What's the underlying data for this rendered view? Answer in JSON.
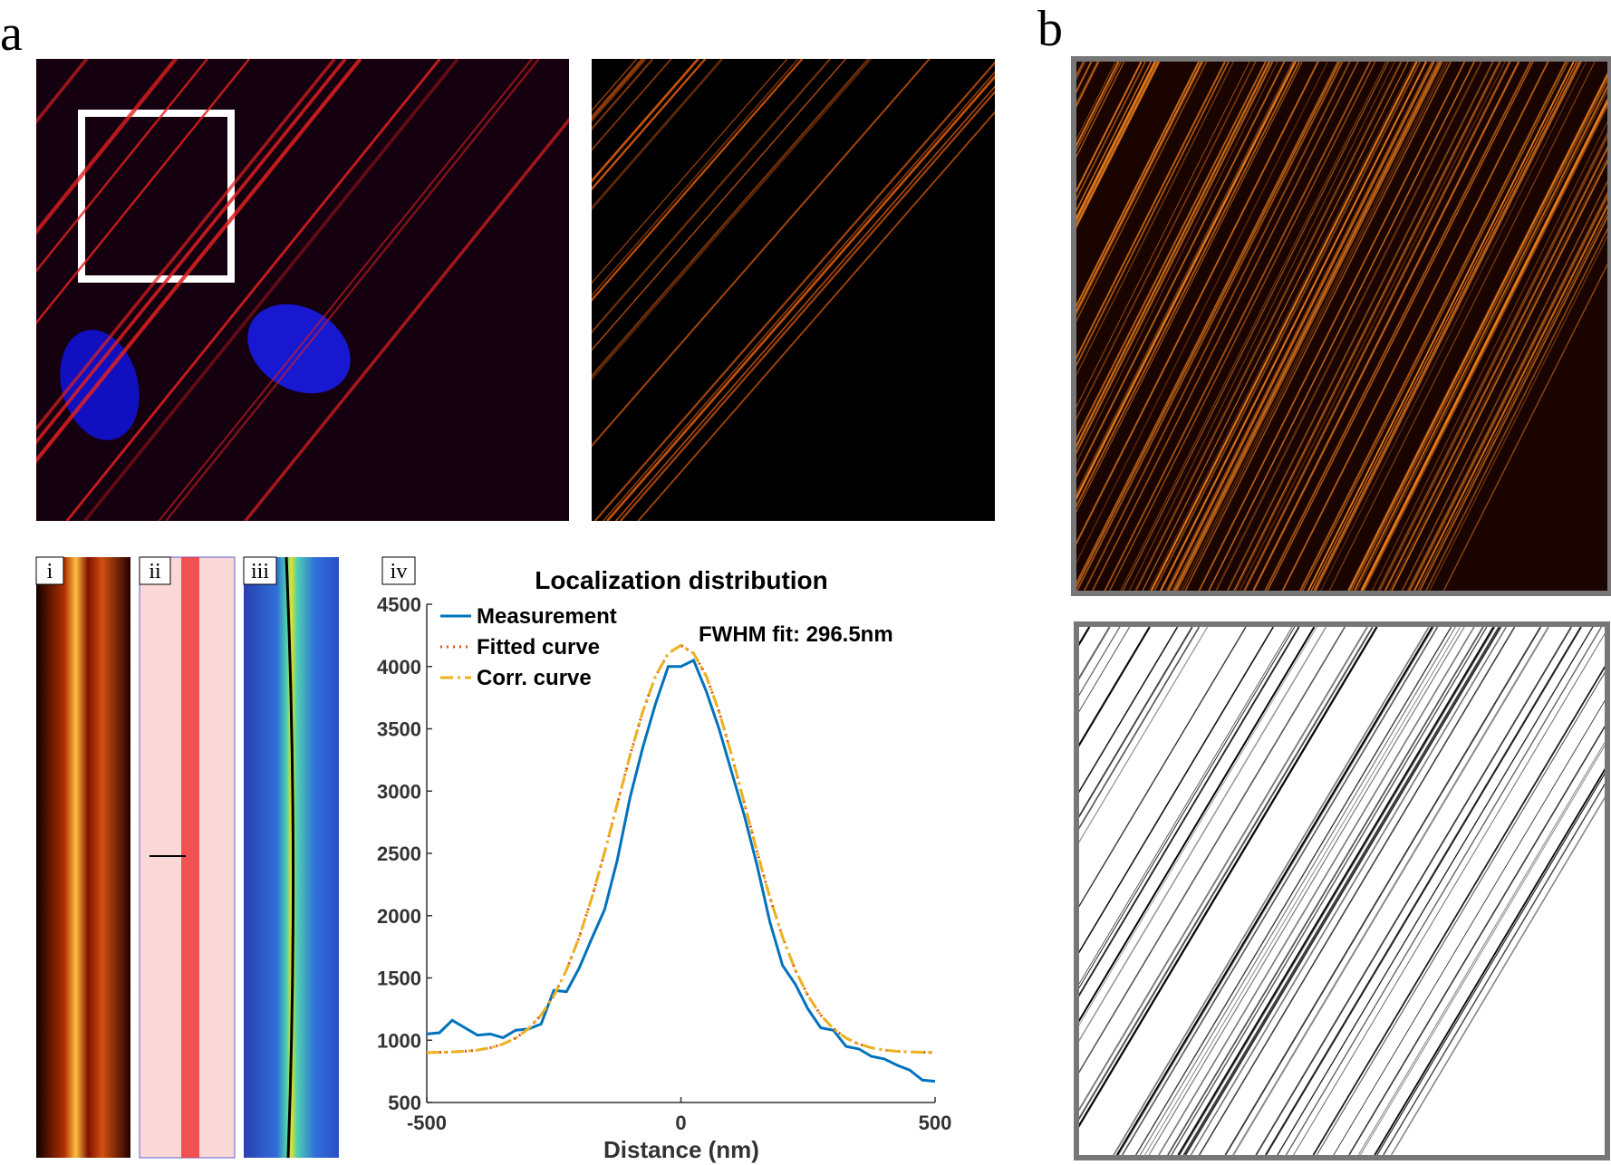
{
  "labels": {
    "a": "a",
    "b": "b",
    "i": "i",
    "ii": "ii",
    "iii": "iii",
    "iv": "iv"
  },
  "chart_data": {
    "type": "line",
    "title": "Localization distribution",
    "xlabel": "Distance (nm)",
    "annotation": "FWHM fit: 296.5nm",
    "legend": "upper left",
    "x": [
      -500,
      -475,
      -450,
      -425,
      -400,
      -375,
      -350,
      -325,
      -300,
      -275,
      -250,
      -225,
      -200,
      -175,
      -150,
      -125,
      -100,
      -75,
      -50,
      -25,
      0,
      25,
      50,
      75,
      100,
      125,
      150,
      175,
      200,
      225,
      250,
      275,
      300,
      325,
      350,
      375,
      400,
      425,
      450,
      475,
      500
    ],
    "series": [
      {
        "name": "Measurement",
        "color": "#0072bd",
        "style": "solid",
        "values": [
          1050,
          1060,
          1160,
          1100,
          1040,
          1050,
          1020,
          1080,
          1090,
          1130,
          1400,
          1390,
          1580,
          1820,
          2050,
          2450,
          2950,
          3350,
          3700,
          4000,
          4000,
          4050,
          3800,
          3500,
          3150,
          2800,
          2400,
          1950,
          1600,
          1450,
          1250,
          1100,
          1080,
          950,
          930,
          870,
          850,
          800,
          760,
          680,
          670
        ]
      },
      {
        "name": "Fitted curve",
        "color": "#d95319",
        "style": "dotted",
        "values": [
          901,
          903,
          906,
          911,
          921,
          939,
          969,
          1017,
          1092,
          1202,
          1357,
          1564,
          1828,
          2147,
          2510,
          2899,
          3287,
          3639,
          3922,
          4106,
          4170,
          4106,
          3922,
          3639,
          3287,
          2899,
          2510,
          2147,
          1828,
          1564,
          1357,
          1202,
          1092,
          1017,
          969,
          939,
          921,
          911,
          906,
          903,
          901
        ]
      },
      {
        "name": "Corr. curve",
        "color": "#edb120",
        "style": "dashdot",
        "values": [
          901,
          903,
          906,
          911,
          921,
          939,
          969,
          1017,
          1092,
          1202,
          1357,
          1564,
          1828,
          2147,
          2510,
          2899,
          3287,
          3639,
          3922,
          4106,
          4170,
          4106,
          3922,
          3639,
          3287,
          2899,
          2510,
          2147,
          1828,
          1564,
          1357,
          1202,
          1092,
          1017,
          969,
          939,
          921,
          911,
          906,
          903,
          901
        ]
      }
    ],
    "xlim": [
      -500,
      500
    ],
    "xticks": [
      -500,
      0,
      500
    ],
    "ylim": [
      500,
      4500
    ],
    "yticks": [
      500,
      1000,
      1500,
      2000,
      2500,
      3000,
      3500,
      4000,
      4500
    ]
  }
}
